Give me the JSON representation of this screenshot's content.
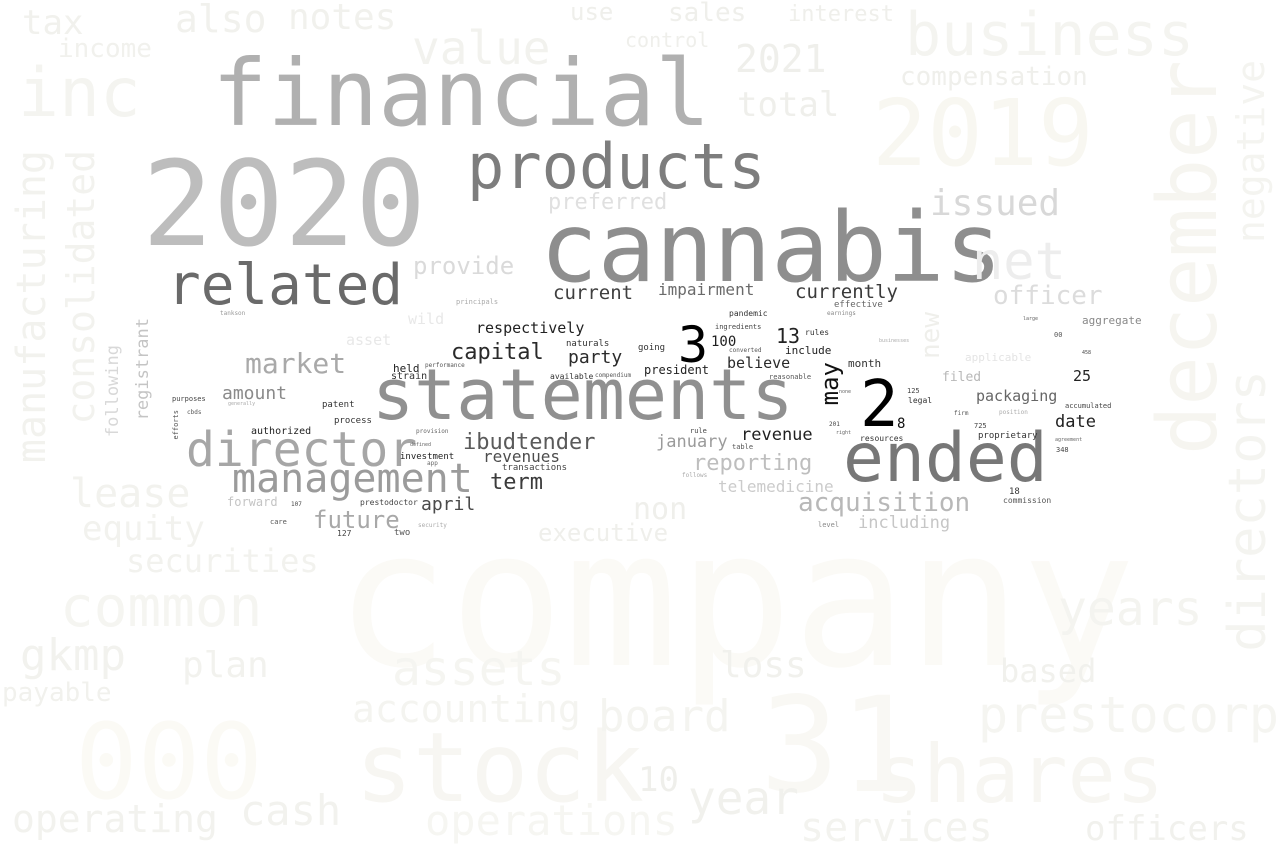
{
  "words": [
    {
      "text": "company",
      "color": "#fbfaf6"
    },
    {
      "text": "december",
      "color": "#f6f5f0"
    },
    {
      "text": "2020",
      "color": "#bdbdbd"
    },
    {
      "text": "financial",
      "color": "#b0b0b0"
    },
    {
      "text": "cannabis",
      "color": "#8e8e8e"
    },
    {
      "text": "statements",
      "color": "#909090"
    },
    {
      "text": "ended",
      "color": "#777777"
    },
    {
      "text": "products",
      "color": "#7d7d7d"
    },
    {
      "text": "related",
      "color": "#6a6a6a"
    },
    {
      "text": "director",
      "color": "#a6a6a6"
    },
    {
      "text": "management",
      "color": "#9b9b9b"
    },
    {
      "text": "net",
      "color": "#ededed"
    },
    {
      "text": "stock",
      "color": "#f7f6f2"
    },
    {
      "text": "shares",
      "color": "#f7f6f2"
    },
    {
      "text": "000",
      "color": "#fbfaf5"
    },
    {
      "text": "31",
      "color": "#f9f8f4"
    },
    {
      "text": "2019",
      "color": "#f8f7f1"
    },
    {
      "text": "business",
      "color": "#f4f4f0"
    },
    {
      "text": "inc",
      "color": "#f4f4f0"
    },
    {
      "text": "manufacturing",
      "color": "#f2f2ee"
    },
    {
      "text": "consolidated",
      "color": "#f2f2ee"
    },
    {
      "text": "directors",
      "color": "#f4f4f0"
    },
    {
      "text": "negative",
      "color": "#f4f4f0"
    },
    {
      "text": "prestocorp",
      "color": "#f5f5f1"
    },
    {
      "text": "common",
      "color": "#f5f5f1"
    },
    {
      "text": "operations",
      "color": "#f6f6f2"
    },
    {
      "text": "assets",
      "color": "#f5f5f1"
    },
    {
      "text": "board",
      "color": "#f4f4f0"
    },
    {
      "text": "accounting",
      "color": "#f4f4f0"
    },
    {
      "text": "services",
      "color": "#f3f3ef"
    },
    {
      "text": "years",
      "color": "#f4f4f0"
    },
    {
      "text": "operating",
      "color": "#f2f2ee"
    },
    {
      "text": "cash",
      "color": "#f2f2ee"
    },
    {
      "text": "equity",
      "color": "#f2f2ee"
    },
    {
      "text": "lease",
      "color": "#f2f2ee"
    },
    {
      "text": "securities",
      "color": "#f2f2ee"
    },
    {
      "text": "gkmp",
      "color": "#f2f2ee"
    },
    {
      "text": "plan",
      "color": "#f2f2ee"
    },
    {
      "text": "value",
      "color": "#f2f2ee"
    },
    {
      "text": "also",
      "color": "#f1f1ed"
    },
    {
      "text": "notes",
      "color": "#f1f1ed"
    },
    {
      "text": "tax",
      "color": "#f1f1ed"
    },
    {
      "text": "income",
      "color": "#f1f1ed"
    },
    {
      "text": "loss",
      "color": "#f1f1ed"
    },
    {
      "text": "based",
      "color": "#f1f1ed"
    },
    {
      "text": "officers",
      "color": "#f1f1ed"
    },
    {
      "text": "year",
      "color": "#f1f1ed"
    },
    {
      "text": "payable",
      "color": "#f1f1ed"
    },
    {
      "text": "total",
      "color": "#efefeb"
    },
    {
      "text": "compensation",
      "color": "#efefeb"
    },
    {
      "text": "issued",
      "color": "#d8d8d8"
    },
    {
      "text": "officer",
      "color": "#dcdcdc"
    },
    {
      "text": "provide",
      "color": "#dadada"
    },
    {
      "text": "preferred",
      "color": "#e0e0e0"
    },
    {
      "text": "market",
      "color": "#a9a9a9"
    },
    {
      "text": "future",
      "color": "#a8a8a8"
    },
    {
      "text": "reporting",
      "color": "#bebebe"
    },
    {
      "text": "acquisition",
      "color": "#b8b8b8"
    },
    {
      "text": "amount",
      "color": "#8a8a8a"
    },
    {
      "text": "including",
      "color": "#c6c6c6"
    },
    {
      "text": "telemedicine",
      "color": "#cbcbcb"
    },
    {
      "text": "ibudtender",
      "color": "#5a5a5a"
    },
    {
      "text": "capital",
      "color": "#2a2a2a"
    },
    {
      "text": "current",
      "color": "#3f3f3f"
    },
    {
      "text": "currently",
      "color": "#3a3a3a"
    },
    {
      "text": "impairment",
      "color": "#6a6a6a"
    },
    {
      "text": "term",
      "color": "#3b3b3b"
    },
    {
      "text": "april",
      "color": "#4a4a4a"
    },
    {
      "text": "revenues",
      "color": "#4d4d4d"
    },
    {
      "text": "revenue",
      "color": "#1f1f1f"
    },
    {
      "text": "january",
      "color": "#9b9b9b"
    },
    {
      "text": "respectively",
      "color": "#222222"
    },
    {
      "text": "party",
      "color": "#2b2b2b"
    },
    {
      "text": "believe",
      "color": "#2a2a2a"
    },
    {
      "text": "may",
      "color": "#111111"
    },
    {
      "text": "2",
      "color": "#000000"
    },
    {
      "text": "3",
      "color": "#000000"
    },
    {
      "text": "13",
      "color": "#222222"
    },
    {
      "text": "100",
      "color": "#1f1f1f"
    },
    {
      "text": "packaging",
      "color": "#666666"
    },
    {
      "text": "date",
      "color": "#222222"
    },
    {
      "text": "25",
      "color": "#222222"
    },
    {
      "text": "filed",
      "color": "#b8b8b8"
    },
    {
      "text": "aggregate",
      "color": "#888888"
    },
    {
      "text": "applicable",
      "color": "#e4e4e4"
    },
    {
      "text": "registrant",
      "color": "#c4c4c4"
    },
    {
      "text": "following",
      "color": "#d8d8d8"
    },
    {
      "text": "asset",
      "color": "#e8e8e8"
    },
    {
      "text": "wild",
      "color": "#e8e8e8"
    },
    {
      "text": "forward",
      "color": "#c4c4c4"
    },
    {
      "text": "executive",
      "color": "#efefeb"
    },
    {
      "text": "non",
      "color": "#efefeb"
    },
    {
      "text": "new",
      "color": "#efefeb"
    },
    {
      "text": "include",
      "color": "#222222"
    },
    {
      "text": "month",
      "color": "#333333"
    },
    {
      "text": "president",
      "color": "#222222"
    },
    {
      "text": "held",
      "color": "#222222"
    },
    {
      "text": "strain",
      "color": "#333333"
    },
    {
      "text": "naturals",
      "color": "#333333"
    },
    {
      "text": "authorized",
      "color": "#222222"
    },
    {
      "text": "process",
      "color": "#333333"
    },
    {
      "text": "patent",
      "color": "#333333"
    },
    {
      "text": "investment",
      "color": "#222222"
    },
    {
      "text": "transactions",
      "color": "#444444"
    },
    {
      "text": "proprietary",
      "color": "#333333"
    },
    {
      "text": "resources",
      "color": "#333333"
    },
    {
      "text": "legal",
      "color": "#333333"
    },
    {
      "text": "8",
      "color": "#111111"
    },
    {
      "text": "effective",
      "color": "#666666"
    },
    {
      "text": "going",
      "color": "#333333"
    },
    {
      "text": "pandemic",
      "color": "#333333"
    },
    {
      "text": "available",
      "color": "#333333"
    },
    {
      "text": "rules",
      "color": "#333333"
    },
    {
      "text": "prestodoctor",
      "color": "#444444"
    },
    {
      "text": "127",
      "color": "#444444"
    },
    {
      "text": "two",
      "color": "#555555"
    },
    {
      "text": "commission",
      "color": "#555555"
    },
    {
      "text": "18",
      "color": "#333333"
    },
    {
      "text": "accumulated",
      "color": "#444444"
    },
    {
      "text": "interest",
      "color": "#efefeb"
    },
    {
      "text": "use",
      "color": "#efefeb"
    },
    {
      "text": "sales",
      "color": "#efefeb"
    },
    {
      "text": "control",
      "color": "#efefeb"
    },
    {
      "text": "2021",
      "color": "#efefeb"
    },
    {
      "text": "10",
      "color": "#efefeb"
    },
    {
      "text": "ingredients",
      "color": "#444444"
    },
    {
      "text": "converted",
      "color": "#555555"
    },
    {
      "text": "reasonable",
      "color": "#555555"
    },
    {
      "text": "table",
      "color": "#555555"
    },
    {
      "text": "rule",
      "color": "#444444"
    },
    {
      "text": "purposes",
      "color": "#444444"
    },
    {
      "text": "cbds",
      "color": "#555555"
    },
    {
      "text": "efforts",
      "color": "#555555"
    },
    {
      "text": "care",
      "color": "#555555"
    },
    {
      "text": "performance",
      "color": "#555555"
    },
    {
      "text": "compendium",
      "color": "#555555"
    },
    {
      "text": "provision",
      "color": "#666666"
    },
    {
      "text": "defined",
      "color": "#666666"
    },
    {
      "text": "app",
      "color": "#666666"
    },
    {
      "text": "principals",
      "color": "#aaaaaa"
    },
    {
      "text": "tankson",
      "color": "#999999"
    },
    {
      "text": "earnings",
      "color": "#888888"
    },
    {
      "text": "businesses",
      "color": "#aaaaaa"
    },
    {
      "text": "large",
      "color": "#666666"
    },
    {
      "text": "00",
      "color": "#555555"
    },
    {
      "text": "725",
      "color": "#444444"
    },
    {
      "text": "348",
      "color": "#444444"
    },
    {
      "text": "125",
      "color": "#444444"
    },
    {
      "text": "458",
      "color": "#444444"
    },
    {
      "text": "201",
      "color": "#444444"
    },
    {
      "text": "107",
      "color": "#444444"
    },
    {
      "text": "firm",
      "color": "#555555"
    },
    {
      "text": "position",
      "color": "#aaaaaa"
    },
    {
      "text": "agreement",
      "color": "#666666"
    },
    {
      "text": "security",
      "color": "#aaaaaa"
    },
    {
      "text": "follows",
      "color": "#aaaaaa"
    },
    {
      "text": "level",
      "color": "#888888"
    },
    {
      "text": "right",
      "color": "#666666"
    },
    {
      "text": "none",
      "color": "#666666"
    },
    {
      "text": "generally",
      "color": "#aaaaaa"
    }
  ]
}
